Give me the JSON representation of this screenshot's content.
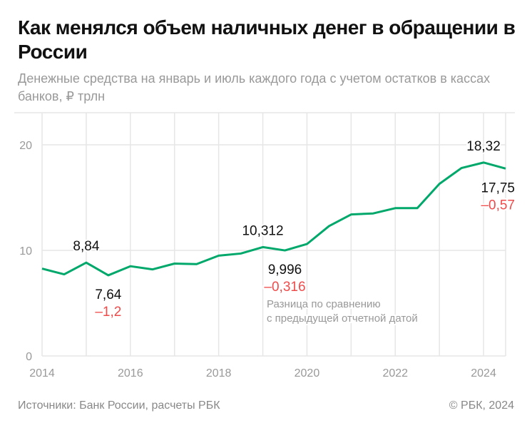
{
  "title": "Как менялся объем наличных денег в обращении в России",
  "subtitle": "Денежные средства на январь и июль каждого года с учетом остатков в кассах банков, ₽ трлн",
  "footer": {
    "source": "Источники: Банк России, расчеты РБК",
    "copyright": "© РБК, 2024"
  },
  "colors": {
    "line": "#00a86b",
    "negative": "#f04b4b",
    "grid": "#e6e6e6",
    "annotation": "#999999"
  },
  "chart_data": {
    "type": "line",
    "x": [
      2014.0,
      2014.5,
      2015.0,
      2015.5,
      2016.0,
      2016.5,
      2017.0,
      2017.5,
      2018.0,
      2018.5,
      2019.0,
      2019.5,
      2020.0,
      2020.5,
      2021.0,
      2021.5,
      2022.0,
      2022.5,
      2023.0,
      2023.5,
      2024.0,
      2024.5
    ],
    "series": [
      {
        "values": [
          8.27,
          7.73,
          8.84,
          7.64,
          8.5,
          8.2,
          8.75,
          8.7,
          9.5,
          9.7,
          10.312,
          9.996,
          10.6,
          12.3,
          13.4,
          13.5,
          14.0,
          14.0,
          16.3,
          17.8,
          18.32,
          17.75
        ]
      }
    ],
    "xlim": [
      2014,
      2024.5
    ],
    "ylim": [
      0,
      23
    ],
    "xticks": [
      "2014",
      "2016",
      "2018",
      "2020",
      "2022",
      "2024"
    ],
    "yticks": [
      "0",
      "10",
      "20"
    ],
    "grid": true,
    "annotations": [
      {
        "x": 2015.0,
        "label": "8,84",
        "position": "above"
      },
      {
        "x": 2015.5,
        "label": "7,64",
        "delta": "–1,2",
        "position": "below"
      },
      {
        "x": 2019.0,
        "label": "10,312",
        "position": "above"
      },
      {
        "x": 2019.5,
        "label": "9,996",
        "delta": "–0,316",
        "position": "below"
      },
      {
        "x": 2024.0,
        "label": "18,32",
        "position": "above"
      },
      {
        "x": 2024.5,
        "label": "17,75",
        "delta": "–0,57",
        "position": "below"
      }
    ],
    "note": [
      "Разница по сравнению",
      "с предыдущей отчетной датой"
    ]
  }
}
